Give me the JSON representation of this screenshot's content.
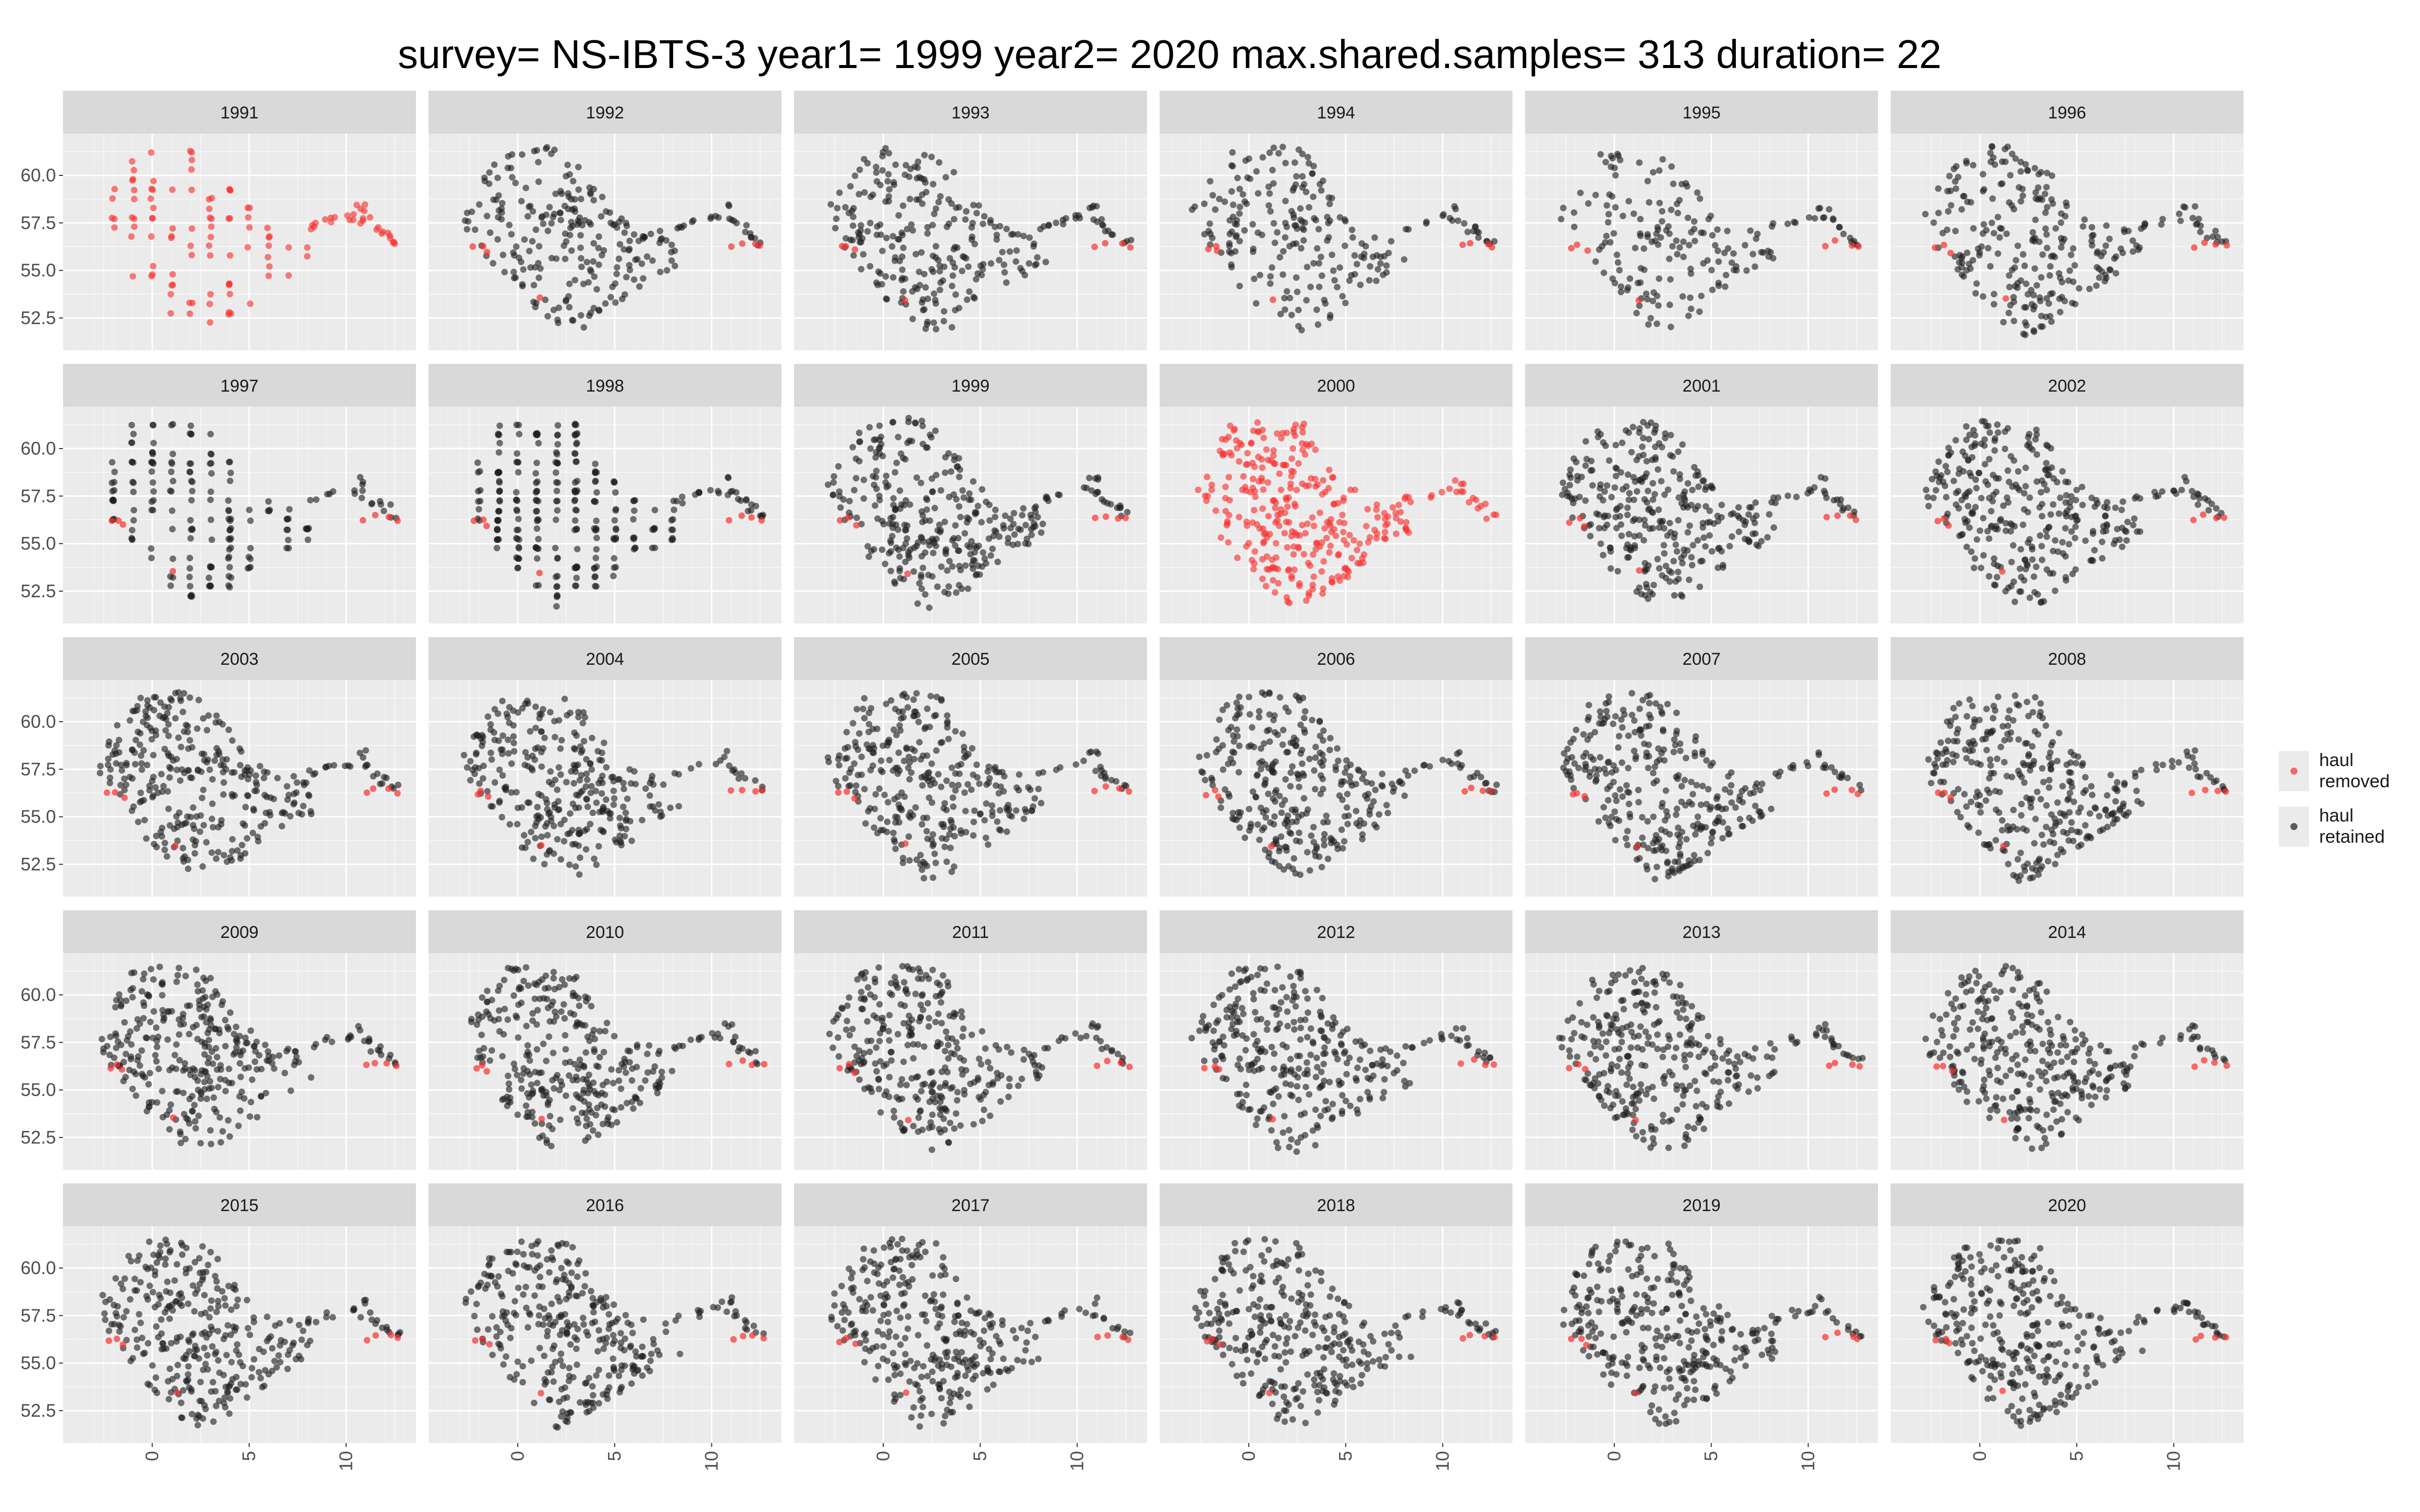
{
  "chart_data": {
    "type": "scatter",
    "title": "survey= NS-IBTS-3 year1= 1999 year2= 2020 max.shared.samples= 313 duration= 22",
    "xlabel": "",
    "ylabel": "",
    "layout": "facet-wrap",
    "facet_nrow": 5,
    "facet_ncol": 6,
    "x_ticks": [
      "0",
      "5",
      "10"
    ],
    "y_ticks": [
      "52.5",
      "55.0",
      "57.5",
      "60.0"
    ],
    "xlim": [
      -4.6,
      13.6
    ],
    "ylim": [
      50.8,
      62.2
    ],
    "grid": true,
    "legend_position": "right",
    "legend": [
      {
        "label_lines": [
          "haul",
          "removed"
        ],
        "color": "#f8312f"
      },
      {
        "label_lines": [
          "haul",
          "retained"
        ],
        "color": "#202020"
      }
    ],
    "colors": {
      "removed": "#f8312f",
      "retained": "#202020",
      "panel": "#ebebeb",
      "strip": "#d9d9d9"
    },
    "years": [
      "1991",
      "1992",
      "1993",
      "1994",
      "1995",
      "1996",
      "1997",
      "1998",
      "1999",
      "2000",
      "2001",
      "2002",
      "2003",
      "2004",
      "2005",
      "2006",
      "2007",
      "2008",
      "2009",
      "2010",
      "2011",
      "2012",
      "2013",
      "2014",
      "2015",
      "2016",
      "2017",
      "2018",
      "2019",
      "2020"
    ],
    "fully_removed_years": [
      "1991",
      "2000"
    ],
    "sparse_grid_years": [
      "1991",
      "1997",
      "1998"
    ],
    "approx_points_per_panel": {
      "1991": 90,
      "1992": 230,
      "1993": 240,
      "1994": 200,
      "1995": 160,
      "1996": 240,
      "1997": 160,
      "1998": 240,
      "1999": 300,
      "2000": 300,
      "2001": 300,
      "2002": 300,
      "2003": 300,
      "2004": 300,
      "2005": 300,
      "2006": 300,
      "2007": 300,
      "2008": 300,
      "2009": 300,
      "2010": 300,
      "2011": 300,
      "2012": 300,
      "2013": 300,
      "2014": 300,
      "2015": 300,
      "2016": 300,
      "2017": 300,
      "2018": 300,
      "2019": 300,
      "2020": 300
    },
    "main_region": {
      "description": "North Sea haul positions (lon, lat)",
      "vertices": [
        [
          -3,
          58
        ],
        [
          -1,
          61.3
        ],
        [
          1,
          61.6
        ],
        [
          3,
          61.3
        ],
        [
          4.5,
          58.7
        ],
        [
          6,
          57.5
        ],
        [
          8,
          57
        ],
        [
          8.5,
          55.3
        ],
        [
          7,
          54.7
        ],
        [
          5.5,
          53.5
        ],
        [
          3.5,
          52
        ],
        [
          2,
          51.5
        ],
        [
          1,
          52.5
        ],
        [
          -0.5,
          54
        ],
        [
          -1.5,
          55.5
        ],
        [
          -2.5,
          56.7
        ]
      ]
    },
    "east_cluster": {
      "description": "Skagerrak/Kattegat strip",
      "points": [
        [
          8.3,
          57.3
        ],
        [
          9.2,
          57.6
        ],
        [
          10.2,
          57.8
        ],
        [
          10.8,
          58.3
        ],
        [
          11.0,
          57.6
        ],
        [
          11.5,
          57.2
        ],
        [
          12.0,
          56.9
        ],
        [
          12.5,
          56.5
        ]
      ]
    },
    "removed_points_typical": [
      [
        -2.2,
        56.2
      ],
      [
        -1.8,
        56.3
      ],
      [
        -1.5,
        56.0
      ],
      [
        1.2,
        53.5
      ],
      [
        11.0,
        56.3
      ],
      [
        11.5,
        56.5
      ],
      [
        12.2,
        56.4
      ],
      [
        12.6,
        56.3
      ]
    ]
  }
}
